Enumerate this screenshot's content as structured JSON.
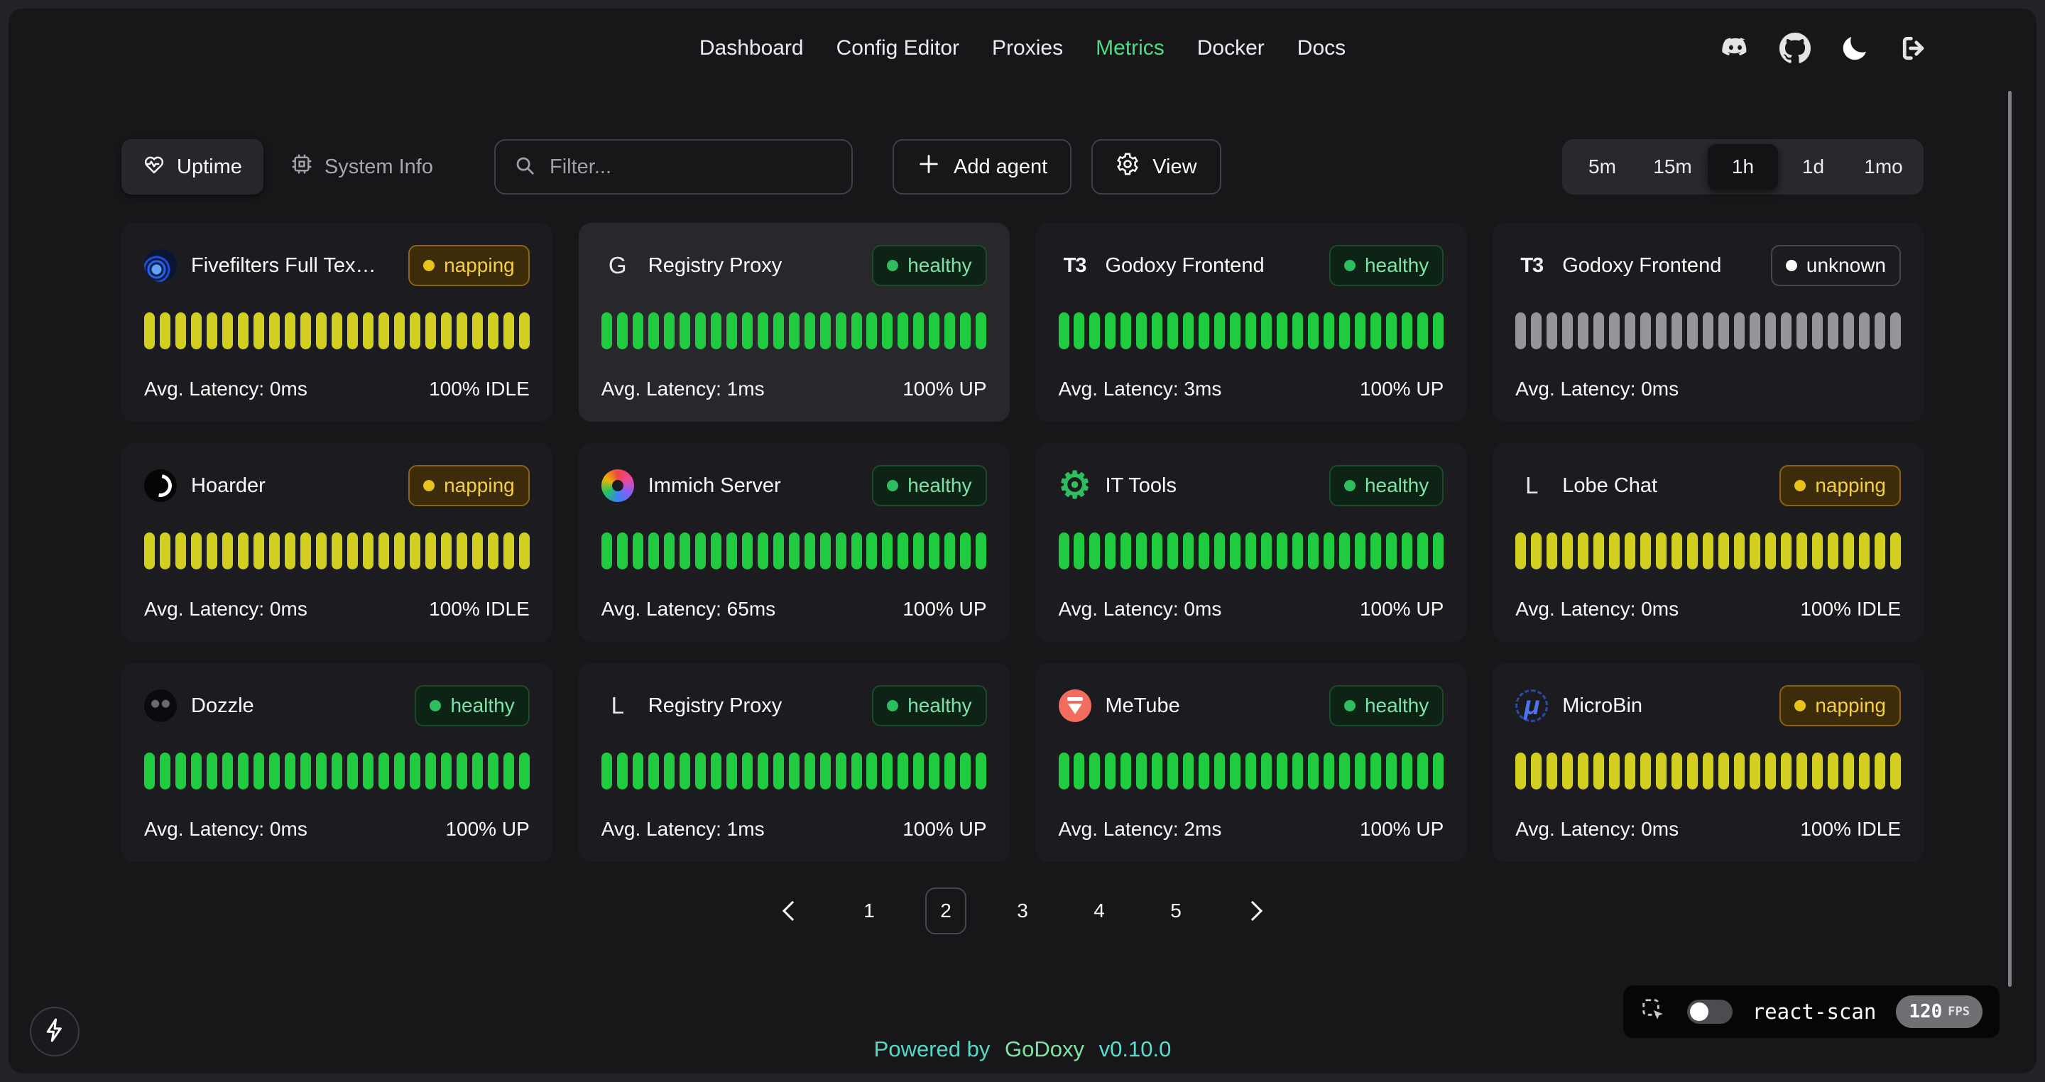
{
  "nav": {
    "items": [
      {
        "label": "Dashboard",
        "active": false
      },
      {
        "label": "Config Editor",
        "active": false
      },
      {
        "label": "Proxies",
        "active": false
      },
      {
        "label": "Metrics",
        "active": true
      },
      {
        "label": "Docker",
        "active": false
      },
      {
        "label": "Docs",
        "active": false
      }
    ],
    "active_color": "#4ade80",
    "header_icons": [
      "discord-icon",
      "github-icon",
      "moon-icon",
      "logout-icon"
    ]
  },
  "toolbar": {
    "tabs": [
      {
        "label": "Uptime",
        "icon": "heart-pulse",
        "active": true
      },
      {
        "label": "System Info",
        "icon": "cpu",
        "active": false
      }
    ],
    "filter_placeholder": "Filter...",
    "add_agent_label": "Add agent",
    "view_label": "View",
    "time_ranges": [
      {
        "label": "5m",
        "active": false
      },
      {
        "label": "15m",
        "active": false
      },
      {
        "label": "1h",
        "active": true
      },
      {
        "label": "1d",
        "active": false
      },
      {
        "label": "1mo",
        "active": false
      }
    ]
  },
  "services": [
    {
      "name": "Fivefilters Full Tex…",
      "icon": {
        "kind": "fivefilters",
        "text": ""
      },
      "status": "napping",
      "latency_text": "Avg. Latency: 0ms",
      "uptime_text": "100% IDLE",
      "bar_state": "idle",
      "bars_count": 25,
      "highlighted": false
    },
    {
      "name": "Registry Proxy",
      "icon": {
        "kind": "letter",
        "text": "G"
      },
      "status": "healthy",
      "latency_text": "Avg. Latency: 1ms",
      "uptime_text": "100% UP",
      "bar_state": "up",
      "bars_count": 25,
      "highlighted": true
    },
    {
      "name": "Godoxy Frontend",
      "icon": {
        "kind": "t3",
        "text": "T3"
      },
      "status": "healthy",
      "latency_text": "Avg. Latency: 3ms",
      "uptime_text": "100% UP",
      "bar_state": "up",
      "bars_count": 25,
      "highlighted": false
    },
    {
      "name": "Godoxy Frontend",
      "icon": {
        "kind": "t3",
        "text": "T3"
      },
      "status": "unknown",
      "latency_text": "Avg. Latency: 0ms",
      "uptime_text": "",
      "bar_state": "unknown",
      "bars_count": 25,
      "highlighted": false
    },
    {
      "name": "Hoarder",
      "icon": {
        "kind": "hoarder",
        "text": ""
      },
      "status": "napping",
      "latency_text": "Avg. Latency: 0ms",
      "uptime_text": "100% IDLE",
      "bar_state": "idle",
      "bars_count": 25,
      "highlighted": false
    },
    {
      "name": "Immich Server",
      "icon": {
        "kind": "immich",
        "text": ""
      },
      "status": "healthy",
      "latency_text": "Avg. Latency: 65ms",
      "uptime_text": "100% UP",
      "bar_state": "up",
      "bars_count": 25,
      "highlighted": false
    },
    {
      "name": "IT Tools",
      "icon": {
        "kind": "ittools",
        "text": "⚙"
      },
      "status": "healthy",
      "latency_text": "Avg. Latency: 0ms",
      "uptime_text": "100% UP",
      "bar_state": "up",
      "bars_count": 25,
      "highlighted": false
    },
    {
      "name": "Lobe Chat",
      "icon": {
        "kind": "letter",
        "text": "L"
      },
      "status": "napping",
      "latency_text": "Avg. Latency: 0ms",
      "uptime_text": "100% IDLE",
      "bar_state": "idle",
      "bars_count": 25,
      "highlighted": false
    },
    {
      "name": "Dozzle",
      "icon": {
        "kind": "dozzle",
        "text": ""
      },
      "status": "healthy",
      "latency_text": "Avg. Latency: 0ms",
      "uptime_text": "100% UP",
      "bar_state": "up",
      "bars_count": 25,
      "highlighted": false
    },
    {
      "name": "Registry Proxy",
      "icon": {
        "kind": "letter",
        "text": "L"
      },
      "status": "healthy",
      "latency_text": "Avg. Latency: 1ms",
      "uptime_text": "100% UP",
      "bar_state": "up",
      "bars_count": 25,
      "highlighted": false
    },
    {
      "name": "MeTube",
      "icon": {
        "kind": "metube",
        "text": ""
      },
      "status": "healthy",
      "latency_text": "Avg. Latency: 2ms",
      "uptime_text": "100% UP",
      "bar_state": "up",
      "bars_count": 25,
      "highlighted": false
    },
    {
      "name": "MicroBin",
      "icon": {
        "kind": "microbin",
        "text": "μ"
      },
      "status": "napping",
      "latency_text": "Avg. Latency: 0ms",
      "uptime_text": "100% IDLE",
      "bar_state": "idle",
      "bars_count": 25,
      "highlighted": false
    }
  ],
  "status_colors": {
    "healthy": {
      "text": "#7fe3a8",
      "dot": "#2fbe5f",
      "bg": "#0c2315",
      "border": "#1d4a2a"
    },
    "napping": {
      "text": "#f7cf43",
      "dot": "#e7c31c",
      "bg": "#3d2c09",
      "border": "#8a6410"
    },
    "unknown": {
      "text": "#fafafa",
      "dot": "#fafafa",
      "bg": "transparent",
      "border": "#46464c"
    }
  },
  "bar_colors": {
    "up": "#21cb3f",
    "idle": "#d3cf20",
    "unknown": "#95959a"
  },
  "pagination": {
    "pages": [
      "1",
      "2",
      "3",
      "4",
      "5"
    ],
    "current": "2"
  },
  "footer": {
    "prefix": "Powered by",
    "brand": "GoDoxy",
    "version": "v0.10.0"
  },
  "react_scan": {
    "label": "react-scan",
    "fps": "120",
    "fps_unit": "FPS",
    "enabled": false
  }
}
